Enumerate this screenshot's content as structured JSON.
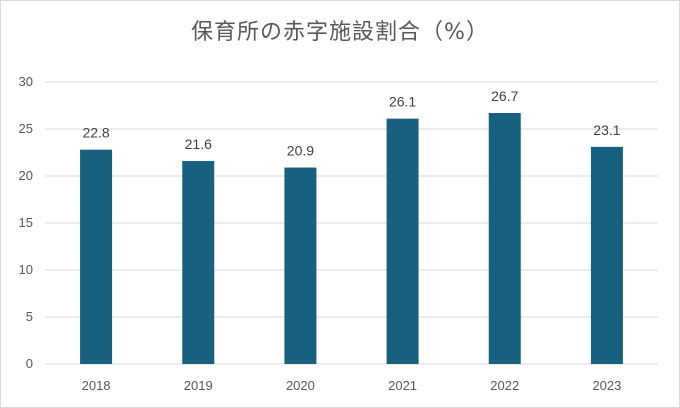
{
  "chart_data": {
    "type": "bar",
    "title": "保育所の赤字施設割合（%）",
    "categories": [
      "2018",
      "2019",
      "2020",
      "2021",
      "2022",
      "2023"
    ],
    "values": [
      22.8,
      21.6,
      20.9,
      26.1,
      26.7,
      23.1
    ],
    "data_labels": [
      "22.8",
      "21.6",
      "20.9",
      "26.1",
      "26.7",
      "23.1"
    ],
    "yticks": [
      0,
      5,
      10,
      15,
      20,
      25,
      30
    ],
    "ylim": [
      0,
      30
    ],
    "xlabel": "",
    "ylabel": "",
    "grid": true,
    "legend": "none",
    "bar_color": "#17607f"
  }
}
